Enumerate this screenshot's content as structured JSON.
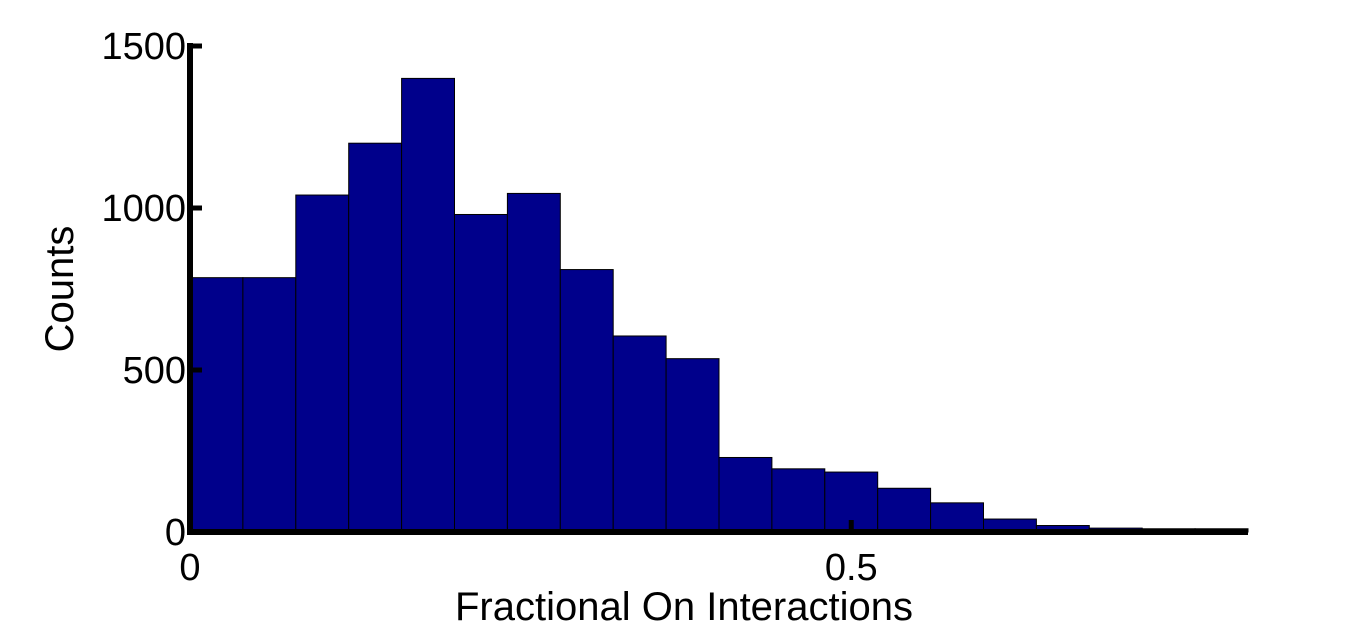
{
  "chart_data": {
    "type": "bar",
    "title": "",
    "xlabel": "Fractional On Interactions",
    "ylabel": "Counts",
    "bin_width": 0.04,
    "bin_starts": [
      0,
      0.04,
      0.08,
      0.12,
      0.16,
      0.2,
      0.24,
      0.28,
      0.32,
      0.36,
      0.4,
      0.44,
      0.48,
      0.52,
      0.56,
      0.6,
      0.64,
      0.68,
      0.72,
      0.76
    ],
    "values": [
      785,
      785,
      1040,
      1200,
      1400,
      980,
      1045,
      810,
      605,
      535,
      230,
      195,
      185,
      135,
      90,
      40,
      20,
      12,
      10,
      10
    ],
    "xlim": [
      0,
      0.8
    ],
    "ylim": [
      0,
      1500
    ],
    "x_ticks": [
      0,
      0.5
    ],
    "x_tick_labels": [
      "0",
      "0.5"
    ],
    "y_ticks": [
      0,
      500,
      1000,
      1500
    ],
    "y_tick_labels": [
      "0",
      "500",
      "1000",
      "1500"
    ],
    "bar_color": "#00008B",
    "edge_color": "#000000",
    "grid": false,
    "legend": "none"
  }
}
